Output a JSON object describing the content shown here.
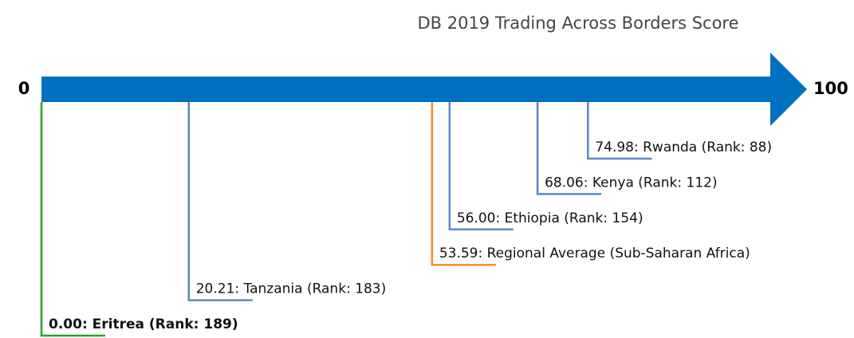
{
  "chart_data": {
    "type": "scale",
    "title": "DB 2019 Trading Across Borders Score",
    "xlim": [
      0,
      100
    ],
    "xticks": [
      0,
      100
    ],
    "values": [
      0,
      20.21,
      53.59,
      56,
      68.06,
      74.98
    ],
    "value_labels": [
      "0.00: Eritrea (Rank: 189)",
      "20.21: Tanzania (Rank: 183)",
      "53.59: Regional Average (Sub-Saharan Africa)",
      "56.00: Ethiopia (Rank: 154)",
      "68.06: Kenya (Rank: 112)",
      "74.98: Rwanda (Rank: 88)"
    ],
    "colors": [
      "#2ca02c",
      "#5a89c6",
      "#f28e2b",
      "#5a89c6",
      "#5a89c6",
      "#5a89c6"
    ],
    "axis_color": "#0070c0"
  }
}
